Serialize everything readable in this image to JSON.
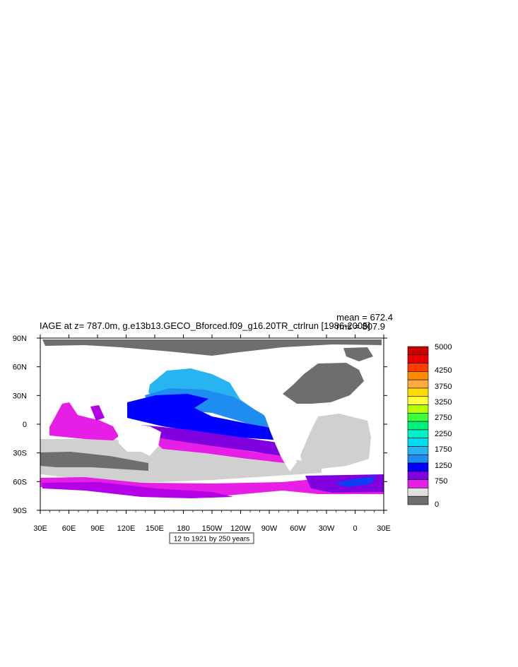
{
  "header": {
    "title": "IAGE at z= 787.0m, g.e13b13.GECO_Bforced.f09_g16.20TR_ctrlrun [1986-2005]",
    "mean_text": "mean = 672.4",
    "rms_text": "rms = 807.9"
  },
  "footer": {
    "contour_info": "12 to 1921 by 250 years"
  },
  "colors": {
    "land": "#6e6e6e",
    "c_0_250": "#d0d0d0",
    "c_250_500": "#e61ee6",
    "c_500_750": "#b400e6",
    "c_750_1000": "#8000e0",
    "c_1000_1250": "#0000ff",
    "c_1250_1500": "#0a40f5",
    "c_1500_1750": "#1e8cf0",
    "c_1750_2000": "#28b4f0"
  },
  "chart_data": {
    "type": "heatmap",
    "variable": "IAGE",
    "x_ticks": [
      "30E",
      "60E",
      "90E",
      "120E",
      "150E",
      "180",
      "150W",
      "120W",
      "90W",
      "60W",
      "30W",
      "0",
      "30E"
    ],
    "y_ticks": [
      "90N",
      "60N",
      "30N",
      "0",
      "30S",
      "60S",
      "90S"
    ],
    "xlim": [
      30,
      390
    ],
    "ylim": [
      -90,
      90
    ],
    "colorbar": {
      "labels": [
        "5000",
        "4250",
        "3750",
        "3250",
        "2750",
        "2250",
        "1750",
        "1250",
        "750",
        "0"
      ],
      "colors": [
        "#c80000",
        "#e60000",
        "#ff3c00",
        "#ff8c00",
        "#ffaa3c",
        "#ffdc00",
        "#ffff3c",
        "#b4ff00",
        "#3cff3c",
        "#00f07a",
        "#00f0c8",
        "#00dcf0",
        "#28b4f0",
        "#1e8cf0",
        "#0000ff",
        "#8000e0",
        "#e61ee6",
        "#e0e0e0",
        "#6e6e6e"
      ]
    },
    "stats": {
      "mean": 672.4,
      "rms": 807.9
    }
  }
}
